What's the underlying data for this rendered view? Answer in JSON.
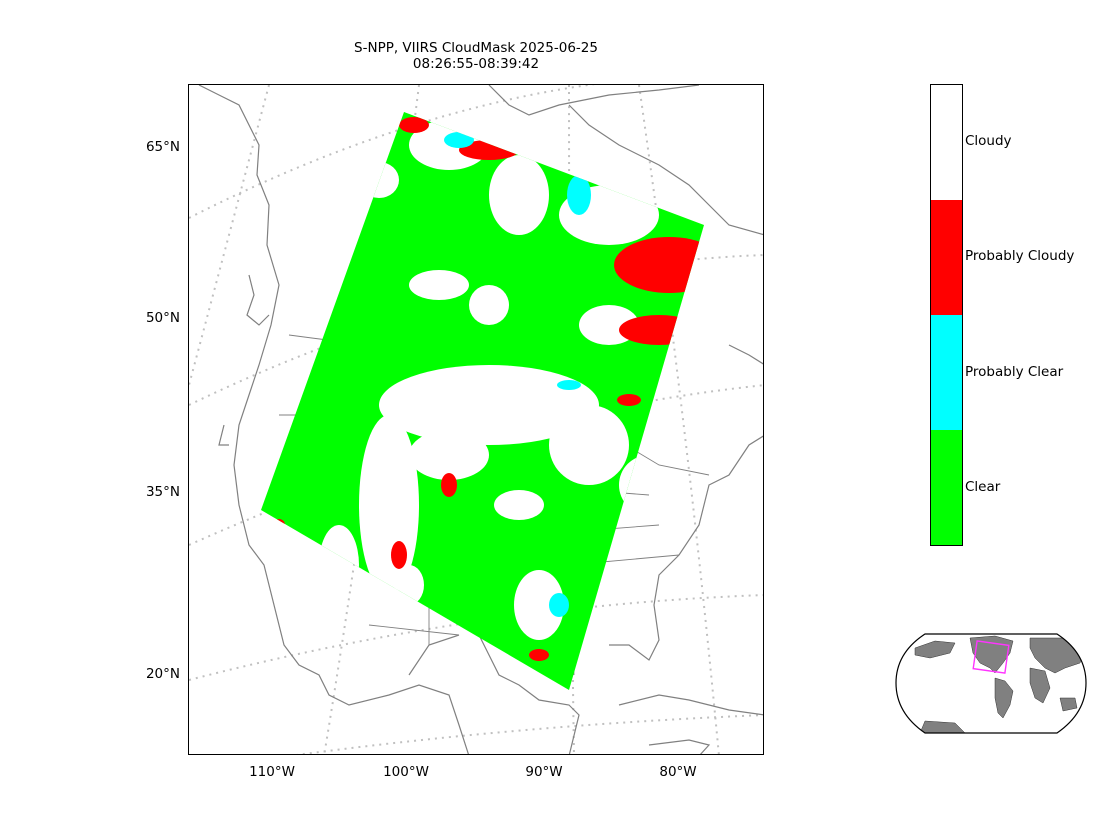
{
  "title": {
    "line1": "S-NPP, VIIRS CloudMask 2025-06-25",
    "line2": "08:26:55-08:39:42"
  },
  "map": {
    "lat_ticks": [
      "65°N",
      "50°N",
      "35°N",
      "20°N"
    ],
    "lon_ticks": [
      "110°W",
      "100°W",
      "90°W",
      "80°W"
    ]
  },
  "legend": {
    "classes": [
      {
        "label": "Cloudy",
        "color": "#ffffff"
      },
      {
        "label": "Probably Cloudy",
        "color": "#ff0000"
      },
      {
        "label": "Probably Clear",
        "color": "#00ffff"
      },
      {
        "label": "Clear",
        "color": "#00ff00"
      }
    ]
  },
  "colors": {
    "coastline": "#808080",
    "graticule": "#c0c0c0",
    "land_inset": "#808080",
    "swath_outline": "#ff00ff"
  }
}
